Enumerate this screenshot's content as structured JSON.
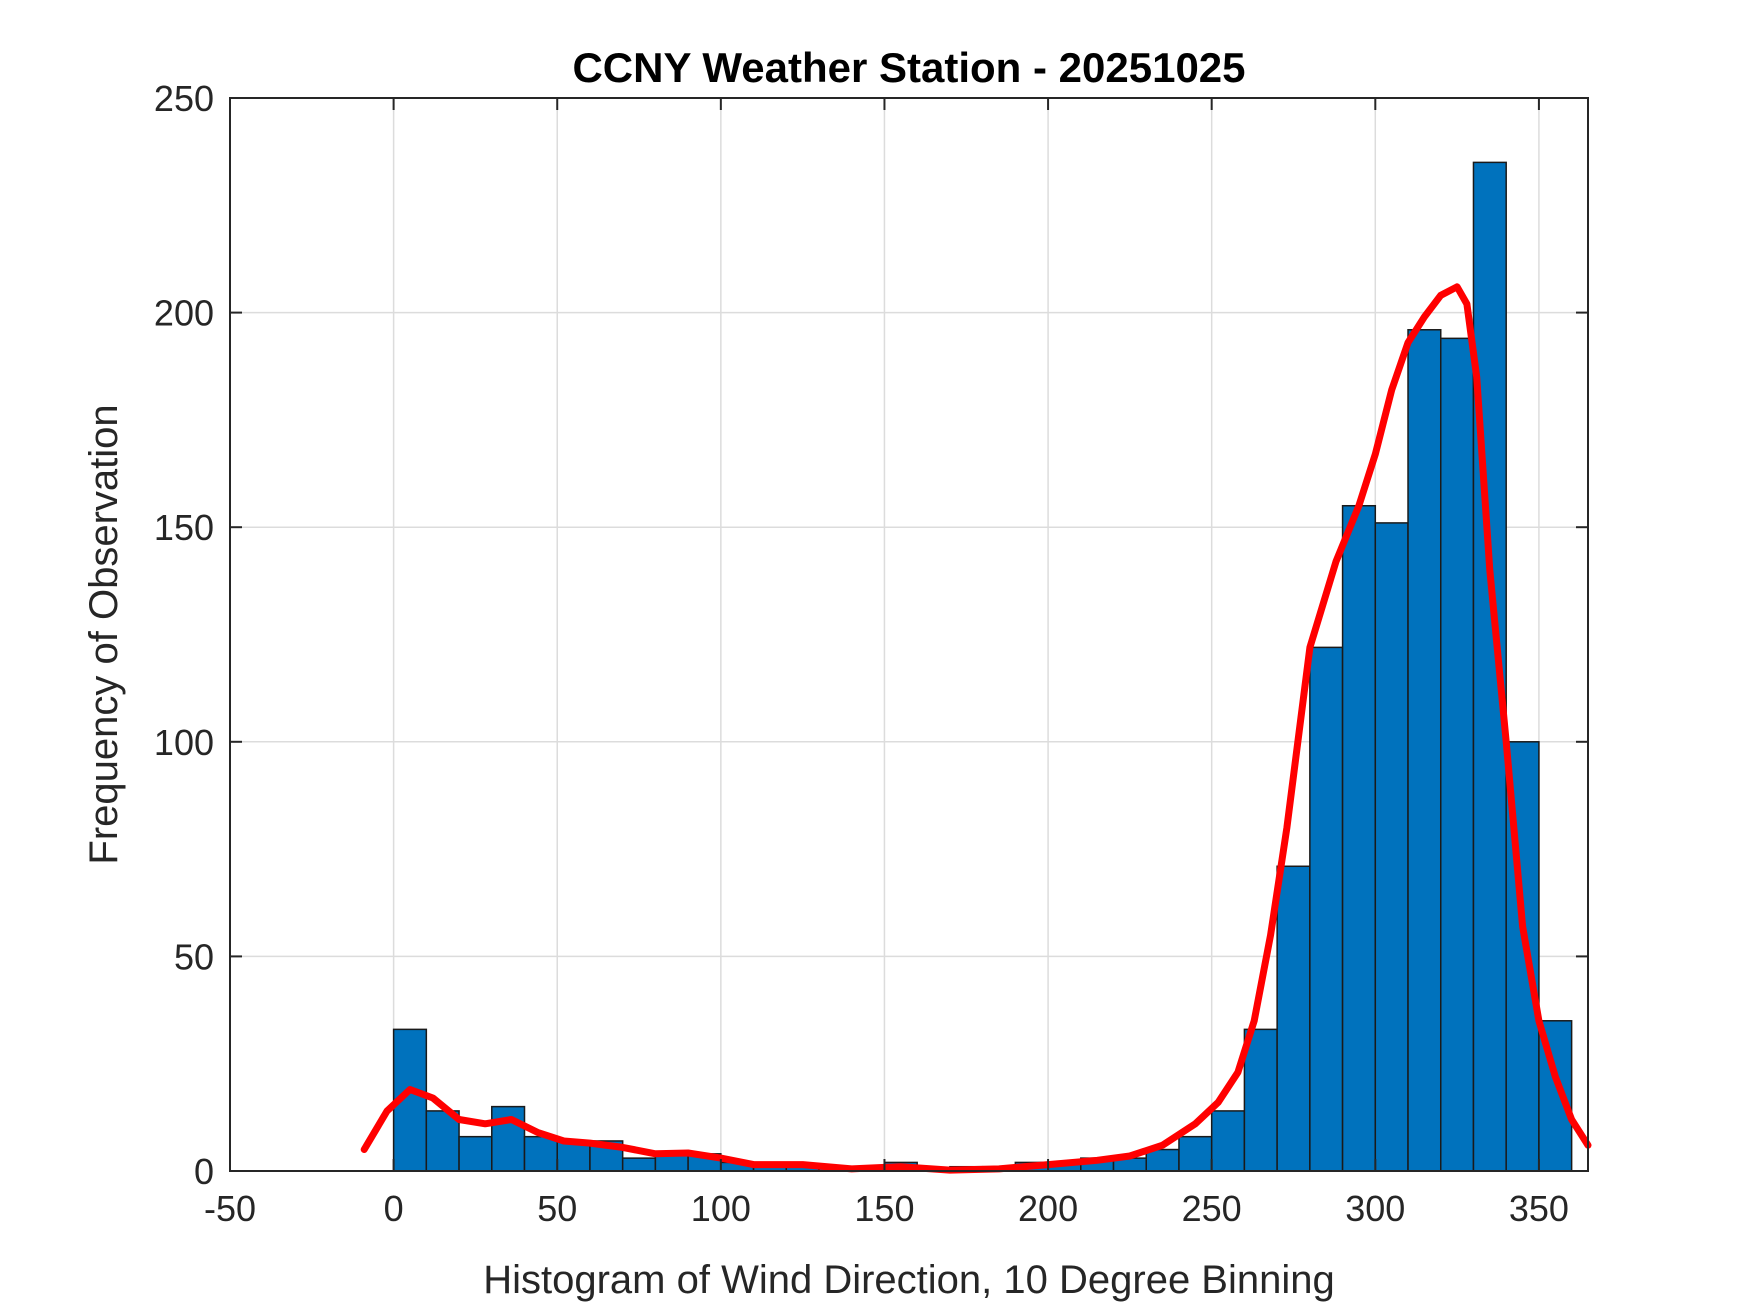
{
  "chart_data": {
    "type": "bar",
    "title": "CCNY Weather Station - 20251025",
    "xlabel": "Histogram of Wind Direction, 10 Degree Binning",
    "ylabel": "Frequency of Observation",
    "xlim": [
      -50,
      365
    ],
    "ylim": [
      0,
      250
    ],
    "xticks": [
      -50,
      0,
      50,
      100,
      150,
      200,
      250,
      300,
      350
    ],
    "yticks": [
      0,
      50,
      100,
      150,
      200,
      250
    ],
    "grid": true,
    "bin_width": 10,
    "bins": {
      "edges_start": [
        0,
        10,
        20,
        30,
        40,
        50,
        60,
        70,
        80,
        90,
        100,
        110,
        120,
        130,
        140,
        150,
        160,
        170,
        180,
        190,
        200,
        210,
        220,
        230,
        240,
        250,
        260,
        270,
        280,
        290,
        300,
        310,
        320,
        330,
        340,
        350
      ],
      "counts": [
        33,
        14,
        8,
        15,
        8,
        7,
        7,
        3,
        4,
        4,
        2,
        1,
        1,
        1,
        0,
        2,
        0,
        1,
        1,
        2,
        2,
        3,
        3,
        5,
        8,
        14,
        33,
        71,
        122,
        155,
        151,
        196,
        194,
        235,
        100,
        35
      ]
    },
    "fit_curve": {
      "x": [
        -9,
        -2,
        5,
        12,
        20,
        28,
        36,
        44,
        52,
        60,
        70,
        80,
        90,
        100,
        110,
        125,
        140,
        155,
        170,
        185,
        200,
        215,
        225,
        235,
        245,
        252,
        258,
        263,
        268,
        273,
        280,
        288,
        295,
        300,
        305,
        310,
        315,
        320,
        325,
        328,
        331,
        335,
        340,
        345,
        350,
        355,
        360,
        365
      ],
      "y": [
        5,
        14,
        19,
        17,
        12,
        11,
        12,
        9,
        7,
        6.5,
        5.5,
        4,
        4.2,
        3,
        1.5,
        1.5,
        0.5,
        1,
        0.2,
        0.5,
        1.5,
        2.5,
        3.5,
        6,
        11,
        16,
        23,
        35,
        55,
        80,
        122,
        142,
        155,
        167,
        182,
        193,
        199,
        204,
        206,
        202,
        185,
        140,
        100,
        57,
        35,
        22,
        12,
        6
      ]
    },
    "colors": {
      "bars": "#0072bd",
      "fit_curve": "#ff0000"
    }
  }
}
